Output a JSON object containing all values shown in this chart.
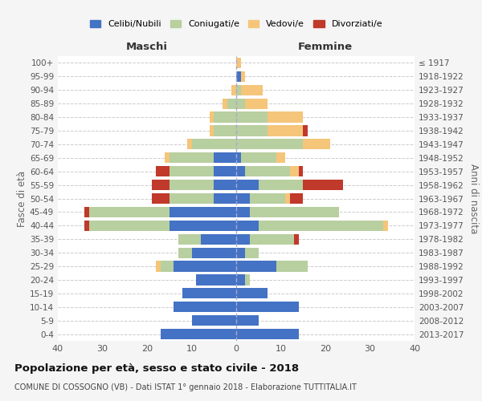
{
  "age_groups": [
    "0-4",
    "5-9",
    "10-14",
    "15-19",
    "20-24",
    "25-29",
    "30-34",
    "35-39",
    "40-44",
    "45-49",
    "50-54",
    "55-59",
    "60-64",
    "65-69",
    "70-74",
    "75-79",
    "80-84",
    "85-89",
    "90-94",
    "95-99",
    "100+"
  ],
  "birth_years": [
    "2013-2017",
    "2008-2012",
    "2003-2007",
    "1998-2002",
    "1993-1997",
    "1988-1992",
    "1983-1987",
    "1978-1982",
    "1973-1977",
    "1968-1972",
    "1963-1967",
    "1958-1962",
    "1953-1957",
    "1948-1952",
    "1943-1947",
    "1938-1942",
    "1933-1937",
    "1928-1932",
    "1923-1927",
    "1918-1922",
    "≤ 1917"
  ],
  "maschi": {
    "celibi": [
      17,
      10,
      14,
      12,
      9,
      14,
      10,
      8,
      15,
      15,
      5,
      5,
      5,
      5,
      0,
      0,
      0,
      0,
      0,
      0,
      0
    ],
    "coniugati": [
      0,
      0,
      0,
      0,
      0,
      3,
      3,
      5,
      18,
      18,
      10,
      10,
      10,
      10,
      10,
      5,
      5,
      2,
      0,
      0,
      0
    ],
    "vedovi": [
      0,
      0,
      0,
      0,
      0,
      1,
      0,
      0,
      0,
      0,
      0,
      0,
      0,
      1,
      1,
      1,
      1,
      1,
      1,
      0,
      0
    ],
    "divorziati": [
      0,
      0,
      0,
      0,
      0,
      0,
      0,
      0,
      1,
      1,
      4,
      4,
      3,
      0,
      0,
      0,
      0,
      0,
      0,
      0,
      0
    ]
  },
  "femmine": {
    "nubili": [
      14,
      5,
      14,
      7,
      2,
      9,
      2,
      3,
      5,
      3,
      3,
      5,
      2,
      1,
      0,
      0,
      0,
      0,
      0,
      1,
      0
    ],
    "coniugate": [
      0,
      0,
      0,
      0,
      1,
      7,
      3,
      10,
      28,
      20,
      8,
      10,
      10,
      8,
      15,
      7,
      7,
      2,
      1,
      0,
      0
    ],
    "vedove": [
      0,
      0,
      0,
      0,
      0,
      0,
      0,
      0,
      1,
      0,
      1,
      0,
      2,
      2,
      6,
      8,
      8,
      5,
      5,
      1,
      1
    ],
    "divorziate": [
      0,
      0,
      0,
      0,
      0,
      0,
      0,
      1,
      0,
      0,
      3,
      9,
      1,
      0,
      0,
      1,
      0,
      0,
      0,
      0,
      0
    ]
  },
  "colors": {
    "celibi_nubili": "#4472c4",
    "coniugati": "#b8cfa0",
    "vedovi": "#f5c57a",
    "divorziati": "#c0392b"
  },
  "title": "Popolazione per età, sesso e stato civile - 2018",
  "subtitle": "COMUNE DI COSSOGNO (VB) - Dati ISTAT 1° gennaio 2018 - Elaborazione TUTTITALIA.IT",
  "xlabel_left": "Maschi",
  "xlabel_right": "Femmine",
  "ylabel_left": "Fasce di età",
  "ylabel_right": "Anni di nascita",
  "xlim": [
    -40,
    40
  ],
  "bg_color": "#f5f5f5",
  "plot_bg_color": "#ffffff",
  "grid_color": "#cccccc"
}
